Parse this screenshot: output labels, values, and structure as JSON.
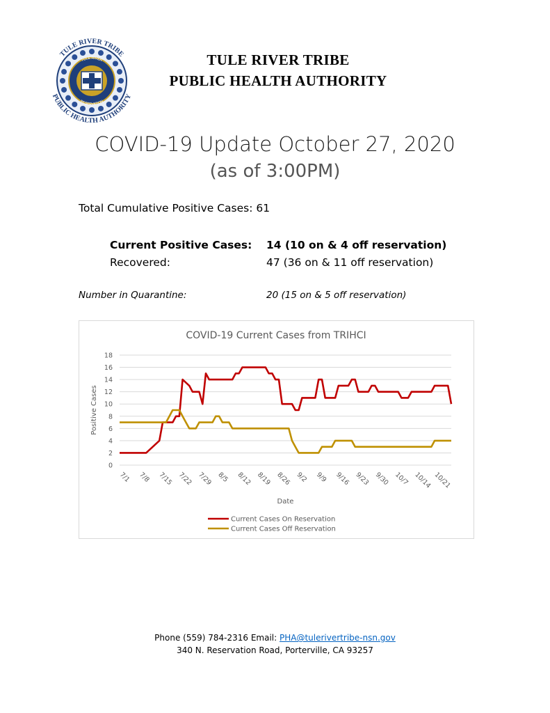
{
  "header": {
    "seal_arc_top": "TULE RIVER TRIBE",
    "seal_arc_bottom": "PUBLIC HEALTH AUTHORITY",
    "seal_band_top": "TULE RIVER",
    "seal_band_bottom": "RESERVATION",
    "org_line1": "TULE RIVER TRIBE",
    "org_line2": "PUBLIC HEALTH AUTHORITY"
  },
  "update": {
    "title": "COVID-19 Update October 27, 2020",
    "subtitle": "(as of 3:00PM)"
  },
  "stats": {
    "cumulative_label": "Total Cumulative Positive Cases:",
    "cumulative_value": "61",
    "current_label": "Current Positive Cases:",
    "current_value": "14 (10 on & 4 off reservation)",
    "recovered_label": "Recovered:",
    "recovered_value": "47 (36 on & 11 off reservation)",
    "quarantine_label": "Number in Quarantine:",
    "quarantine_value": "20 (15 on & 5 off reservation)"
  },
  "chart_data": {
    "type": "line",
    "title": "COVID-19 Current Cases from TRIHCI",
    "xlabel": "Date",
    "ylabel": "Positive Cases",
    "ylim": [
      0,
      18
    ],
    "yticks": [
      0,
      2,
      4,
      6,
      8,
      10,
      12,
      14,
      16,
      18
    ],
    "x_tick_labels": [
      "7/1",
      "7/8",
      "7/15",
      "7/22",
      "7/29",
      "8/5",
      "8/12",
      "8/19",
      "8/26",
      "9/2",
      "9/9",
      "9/16",
      "9/23",
      "9/30",
      "10/7",
      "10/14",
      "10/21"
    ],
    "x_start": "7/1",
    "x_end": "10/27",
    "grid": true,
    "legend_position": "bottom",
    "series": [
      {
        "name": "Current Cases On Reservation",
        "color": "#c00000",
        "points": [
          [
            0,
            2
          ],
          [
            8,
            2
          ],
          [
            10,
            3
          ],
          [
            12,
            4
          ],
          [
            13,
            7
          ],
          [
            16,
            7
          ],
          [
            17,
            8
          ],
          [
            18,
            8
          ],
          [
            19,
            14
          ],
          [
            21,
            13
          ],
          [
            22,
            12
          ],
          [
            24,
            12
          ],
          [
            25,
            10
          ],
          [
            26,
            15
          ],
          [
            27,
            14
          ],
          [
            34,
            14
          ],
          [
            35,
            15
          ],
          [
            36,
            15
          ],
          [
            37,
            16
          ],
          [
            44,
            16
          ],
          [
            45,
            15
          ],
          [
            46,
            15
          ],
          [
            47,
            14
          ],
          [
            48,
            14
          ],
          [
            49,
            10
          ],
          [
            52,
            10
          ],
          [
            53,
            9
          ],
          [
            54,
            9
          ],
          [
            55,
            11
          ],
          [
            59,
            11
          ],
          [
            60,
            14
          ],
          [
            61,
            14
          ],
          [
            62,
            11
          ],
          [
            65,
            11
          ],
          [
            66,
            13
          ],
          [
            69,
            13
          ],
          [
            70,
            14
          ],
          [
            71,
            14
          ],
          [
            72,
            12
          ],
          [
            75,
            12
          ],
          [
            76,
            13
          ],
          [
            77,
            13
          ],
          [
            78,
            12
          ],
          [
            84,
            12
          ],
          [
            85,
            11
          ],
          [
            87,
            11
          ],
          [
            88,
            12
          ],
          [
            94,
            12
          ],
          [
            95,
            13
          ],
          [
            99,
            13
          ],
          [
            100,
            10
          ]
        ]
      },
      {
        "name": "Current Cases Off Reservation",
        "color": "#bf9000",
        "points": [
          [
            0,
            7
          ],
          [
            14,
            7
          ],
          [
            15,
            8
          ],
          [
            16,
            9
          ],
          [
            18,
            9
          ],
          [
            19,
            8
          ],
          [
            20,
            7
          ],
          [
            21,
            6
          ],
          [
            23,
            6
          ],
          [
            24,
            7
          ],
          [
            28,
            7
          ],
          [
            29,
            8
          ],
          [
            30,
            8
          ],
          [
            31,
            7
          ],
          [
            33,
            7
          ],
          [
            34,
            6
          ],
          [
            51,
            6
          ],
          [
            52,
            4
          ],
          [
            53,
            3
          ],
          [
            54,
            2
          ],
          [
            60,
            2
          ],
          [
            61,
            3
          ],
          [
            64,
            3
          ],
          [
            65,
            4
          ],
          [
            70,
            4
          ],
          [
            71,
            3
          ],
          [
            94,
            3
          ],
          [
            95,
            4
          ],
          [
            100,
            4
          ]
        ]
      }
    ]
  },
  "footer": {
    "phone_label": "Phone (559) 784-2316 Email:",
    "email": "PHA@tulerivertribe-nsn.gov",
    "address": "340 N. Reservation Road, Porterville, CA 93257"
  },
  "colors": {
    "seal_navy": "#1f3f7a",
    "seal_gold": "#c9a227",
    "link": "#0563c1"
  }
}
